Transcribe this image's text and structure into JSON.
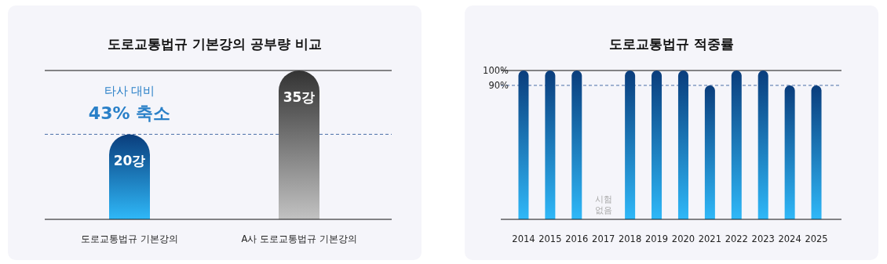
{
  "chart_data": [
    {
      "type": "bar",
      "title": "도로교통법규 기본강의 공부량 비교",
      "categories": [
        "도로교통법규 기본강의",
        "A사 도로교통법규 기본강의"
      ],
      "values": [
        20,
        35
      ],
      "value_labels": [
        "20강",
        "35강"
      ],
      "colors": [
        "#0a3d7c",
        "#333333"
      ],
      "ref_lines": [
        {
          "axis": "y",
          "value": 20,
          "color": "#4a6fa8",
          "line_style": "dashed"
        }
      ],
      "annotations": [
        "타사 대비",
        "43% 축소"
      ],
      "tick_labels": "x"
    },
    {
      "type": "bar",
      "title": "도로교통법규 적중률",
      "categories": [
        "2014",
        "2015",
        "2016",
        "2017",
        "2018",
        "2019",
        "2020",
        "2021",
        "2022",
        "2023",
        "2024",
        "2025"
      ],
      "values": [
        100,
        100,
        100,
        null,
        100,
        100,
        100,
        90,
        100,
        100,
        90,
        90
      ],
      "color": "#0a3d7c",
      "ylim": [
        0,
        100
      ],
      "yticks": [
        {
          "value": 100,
          "label": "100%"
        },
        {
          "value": 90,
          "label": "90%"
        }
      ],
      "ref_lines": [
        {
          "axis": "y",
          "value": 90,
          "color": "#4a6fa8",
          "line_style": "dashed"
        }
      ],
      "annotations": [
        "시험 없음"
      ]
    }
  ]
}
